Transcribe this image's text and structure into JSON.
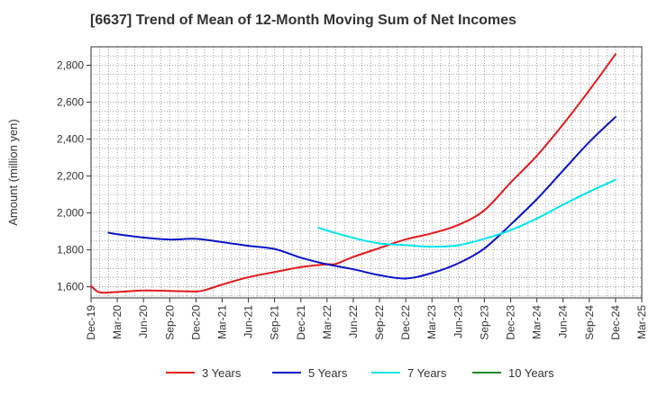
{
  "chart_data": {
    "type": "line",
    "title": "[6637]  Trend of Mean of 12-Month Moving Sum of Net Incomes",
    "ylabel": "Amount (million yen)",
    "xlabel": "",
    "ylim": [
      1540,
      2900
    ],
    "yticks": [
      1600,
      1800,
      2000,
      2200,
      2400,
      2600,
      2800
    ],
    "ytick_labels": [
      "1,600",
      "1,800",
      "2,000",
      "2,200",
      "2,400",
      "2,600",
      "2,800"
    ],
    "x_start": "2019-12",
    "x_end": "2025-03",
    "xticks": [
      "2019-12",
      "2020-03",
      "2020-06",
      "2020-09",
      "2020-12",
      "2021-03",
      "2021-06",
      "2021-09",
      "2021-12",
      "2022-03",
      "2022-06",
      "2022-09",
      "2022-12",
      "2023-03",
      "2023-06",
      "2023-09",
      "2023-12",
      "2024-03",
      "2024-06",
      "2024-09",
      "2024-12",
      "2025-03"
    ],
    "xtick_labels": [
      "Dec-19",
      "Mar-20",
      "Jun-20",
      "Sep-20",
      "Dec-20",
      "Mar-21",
      "Jun-21",
      "Sep-21",
      "Dec-21",
      "Mar-22",
      "Jun-22",
      "Sep-22",
      "Dec-22",
      "Mar-23",
      "Jun-23",
      "Sep-23",
      "Dec-23",
      "Mar-24",
      "Jun-24",
      "Sep-24",
      "Dec-24",
      "Mar-25"
    ],
    "grid": true,
    "legend_position": "bottom",
    "series": [
      {
        "name": "3 Years",
        "color": "#e31a1c",
        "x": [
          "2019-12",
          "2020-01",
          "2020-03",
          "2020-06",
          "2020-09",
          "2020-12",
          "2021-01",
          "2021-03",
          "2021-06",
          "2021-09",
          "2021-12",
          "2022-03",
          "2022-04",
          "2022-06",
          "2022-09",
          "2022-12",
          "2023-03",
          "2023-06",
          "2023-09",
          "2023-12",
          "2024-03",
          "2024-06",
          "2024-09",
          "2024-12"
        ],
        "values": [
          1605,
          1570,
          1572,
          1580,
          1578,
          1575,
          1582,
          1612,
          1652,
          1680,
          1707,
          1722,
          1724,
          1762,
          1810,
          1857,
          1890,
          1935,
          2015,
          2165,
          2310,
          2480,
          2665,
          2860
        ]
      },
      {
        "name": "5 Years",
        "color": "#0a14c8",
        "x": [
          "2020-02",
          "2020-03",
          "2020-06",
          "2020-09",
          "2020-12",
          "2021-03",
          "2021-06",
          "2021-09",
          "2021-12",
          "2022-03",
          "2022-06",
          "2022-09",
          "2022-12",
          "2023-03",
          "2023-06",
          "2023-09",
          "2023-12",
          "2024-03",
          "2024-06",
          "2024-09",
          "2024-12"
        ],
        "values": [
          1893,
          1885,
          1867,
          1856,
          1860,
          1842,
          1822,
          1805,
          1758,
          1722,
          1695,
          1663,
          1645,
          1675,
          1727,
          1808,
          1937,
          2075,
          2230,
          2385,
          2520
        ]
      },
      {
        "name": "7 Years",
        "color": "#00e5ee",
        "x": [
          "2022-02",
          "2022-03",
          "2022-06",
          "2022-09",
          "2022-12",
          "2023-03",
          "2023-06",
          "2023-09",
          "2023-12",
          "2024-03",
          "2024-06",
          "2024-09",
          "2024-12"
        ],
        "values": [
          1920,
          1905,
          1865,
          1835,
          1826,
          1817,
          1825,
          1860,
          1907,
          1970,
          2045,
          2115,
          2180
        ]
      },
      {
        "name": "10 Years",
        "color": "#228b22",
        "x": [],
        "values": []
      }
    ]
  }
}
